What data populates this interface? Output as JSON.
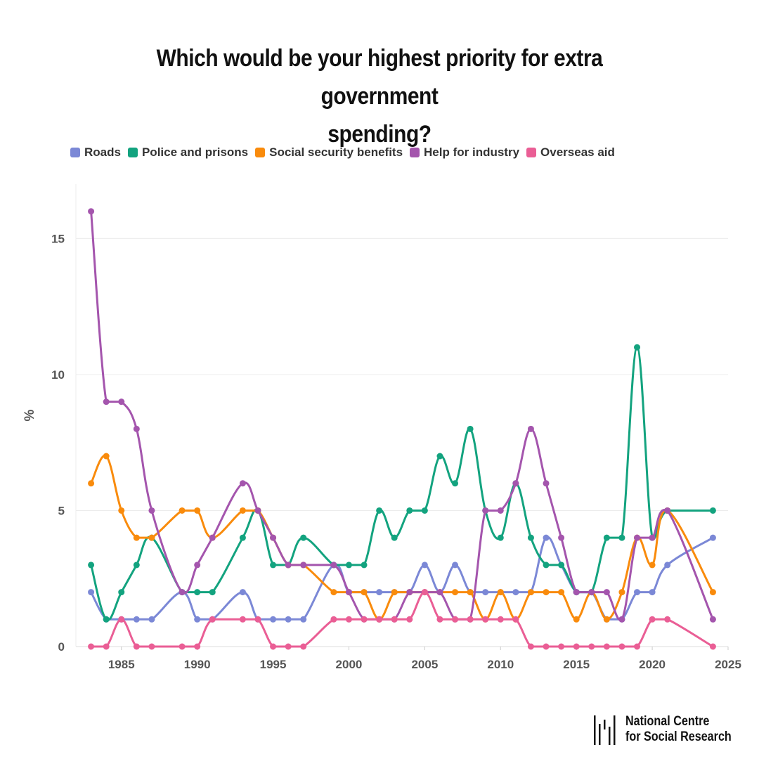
{
  "page": {
    "title_line1": "Which would be your highest priority for extra government",
    "title_line2": "spending?"
  },
  "logo": {
    "line1": "National Centre",
    "line2": "for Social Research",
    "icon": "ncsr-bars-logo"
  },
  "colors": {
    "roads": "#7b88d6",
    "police": "#13a37f",
    "social": "#f98b0c",
    "industry": "#a455ad",
    "aid": "#ea5e95",
    "grid": "#ececec",
    "axis": "#555555"
  },
  "chart_data": {
    "type": "line",
    "title": "Which would be your highest priority for extra government spending?",
    "xlabel": "",
    "ylabel": "%",
    "xlim": [
      1982,
      2025
    ],
    "ylim": [
      0,
      17
    ],
    "xticks": [
      1985,
      1990,
      1995,
      2000,
      2005,
      2010,
      2015,
      2020,
      2025
    ],
    "yticks": [
      0,
      5,
      10,
      15
    ],
    "x": [
      1983,
      1984,
      1985,
      1986,
      1987,
      1989,
      1990,
      1991,
      1993,
      1994,
      1995,
      1996,
      1997,
      1999,
      2000,
      2001,
      2002,
      2003,
      2004,
      2005,
      2006,
      2007,
      2008,
      2009,
      2010,
      2011,
      2012,
      2013,
      2014,
      2015,
      2016,
      2017,
      2018,
      2019,
      2020,
      2021,
      2024
    ],
    "series": [
      {
        "name": "Roads",
        "color_key": "roads",
        "values": [
          2,
          1,
          1,
          1,
          1,
          2,
          1,
          1,
          2,
          1,
          1,
          1,
          1,
          3,
          2,
          2,
          2,
          2,
          2,
          3,
          2,
          3,
          2,
          2,
          2,
          2,
          2,
          4,
          3,
          2,
          2,
          1,
          1,
          2,
          2,
          3,
          4
        ]
      },
      {
        "name": "Police and prisons",
        "color_key": "police",
        "values": [
          3,
          1,
          2,
          3,
          4,
          2,
          2,
          2,
          4,
          5,
          3,
          3,
          4,
          3,
          3,
          3,
          5,
          4,
          5,
          5,
          7,
          6,
          8,
          5,
          4,
          6,
          4,
          3,
          3,
          2,
          2,
          4,
          4,
          11,
          4,
          5,
          5
        ]
      },
      {
        "name": "Social security benefits",
        "color_key": "social",
        "values": [
          6,
          7,
          5,
          4,
          4,
          5,
          5,
          4,
          5,
          5,
          4,
          3,
          3,
          2,
          2,
          2,
          1,
          2,
          2,
          2,
          2,
          2,
          2,
          1,
          2,
          1,
          2,
          2,
          2,
          1,
          2,
          1,
          2,
          4,
          3,
          5,
          2
        ]
      },
      {
        "name": "Help for industry",
        "color_key": "industry",
        "values": [
          16,
          9,
          9,
          8,
          5,
          2,
          3,
          4,
          6,
          5,
          4,
          3,
          3,
          3,
          2,
          1,
          1,
          1,
          2,
          2,
          2,
          1,
          1,
          5,
          5,
          6,
          8,
          6,
          4,
          2,
          2,
          2,
          1,
          4,
          4,
          5,
          1
        ]
      },
      {
        "name": "Overseas aid",
        "color_key": "aid",
        "values": [
          0,
          0,
          1,
          0,
          0,
          0,
          0,
          1,
          1,
          1,
          0,
          0,
          0,
          1,
          1,
          1,
          1,
          1,
          1,
          2,
          1,
          1,
          1,
          1,
          1,
          1,
          0,
          0,
          0,
          0,
          0,
          0,
          0,
          0,
          1,
          1,
          0
        ]
      }
    ]
  }
}
